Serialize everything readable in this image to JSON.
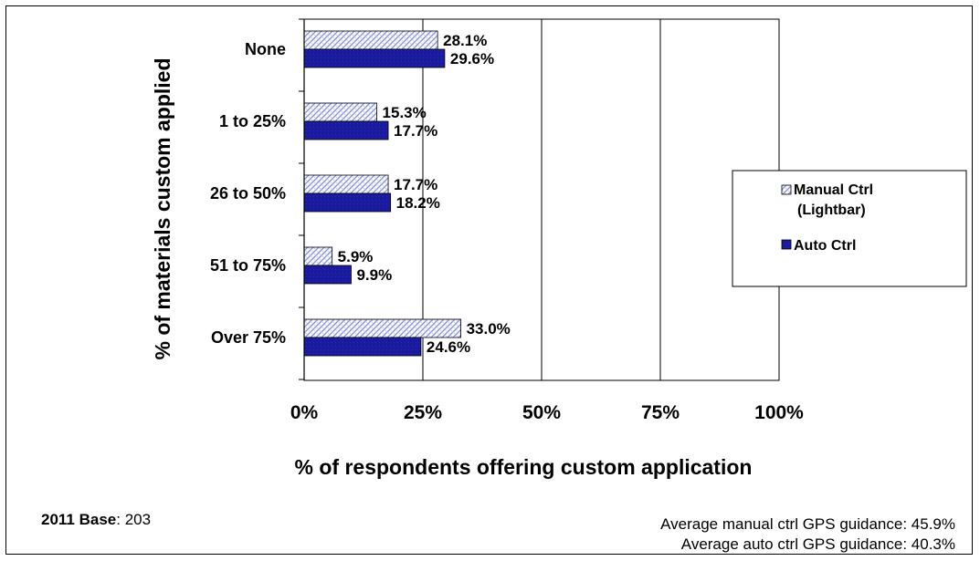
{
  "chart_data": {
    "type": "bar",
    "orientation": "horizontal",
    "categories": [
      "None",
      "1 to 25%",
      "26 to 50%",
      "51 to 75%",
      "Over 75%"
    ],
    "series": [
      {
        "name": "Manual Ctrl (Lightbar)",
        "values": [
          28.1,
          15.3,
          17.7,
          5.9,
          33.0
        ],
        "labels": [
          "28.1%",
          "15.3%",
          "17.7%",
          "5.9%",
          "33.0%"
        ],
        "fill": "hatched",
        "color": "#9aa5de"
      },
      {
        "name": "Auto Ctrl",
        "values": [
          29.6,
          17.7,
          18.2,
          9.9,
          24.6
        ],
        "labels": [
          "29.6%",
          "17.7%",
          "18.2%",
          "9.9%",
          "24.6%"
        ],
        "fill": "solid",
        "color": "#1a1a9e"
      }
    ],
    "xlabel": "% of respondents offering custom application",
    "ylabel": "% of materials custom applied",
    "xlim": [
      0,
      100
    ],
    "xticks": [
      "0%",
      "25%",
      "50%",
      "75%",
      "100%"
    ],
    "xtick_values": [
      0,
      25,
      50,
      75,
      100
    ],
    "grid": "vertical",
    "legend": {
      "position": "right",
      "items": [
        {
          "lines": [
            "Manual Ctrl",
            "(Lightbar)"
          ]
        },
        {
          "lines": [
            "Auto Ctrl"
          ]
        }
      ]
    }
  },
  "footnotes": {
    "base_label": "2011 Base",
    "base_sep": ":",
    "base_value": "203",
    "avg_manual": "Average manual ctrl GPS guidance:  45.9%",
    "avg_auto": "Average auto ctrl GPS guidance:  40.3%"
  }
}
